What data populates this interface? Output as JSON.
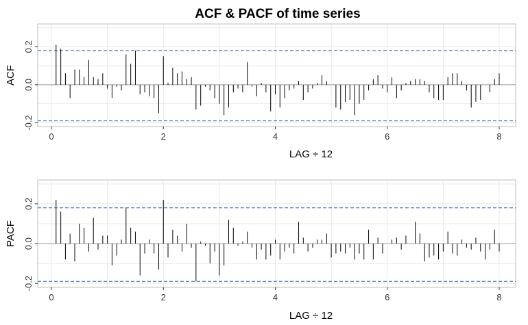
{
  "figure": {
    "title": "ACF & PACF of time series"
  },
  "chart_data": [
    {
      "type": "bar",
      "id": "acf",
      "ylabel": "ACF",
      "xlabel": "LAG ÷ 12",
      "xlim": [
        0,
        8
      ],
      "ylim": [
        -0.22,
        0.32
      ],
      "x_ticks": [
        0,
        2,
        4,
        6,
        8
      ],
      "y_ticks": [
        -0.2,
        0.0,
        0.2
      ],
      "y_tick_labels": [
        "-0.2",
        "0.0",
        "0.2"
      ],
      "x_tick_labels": [
        "0",
        "2",
        "4",
        "6",
        "8"
      ],
      "confidence_bounds": [
        0.18,
        -0.19
      ],
      "grid": true,
      "colors": {
        "bars": "#000000",
        "bounds": "#1f5fb4",
        "zero_line": "#9e9e9e",
        "grid": "#e8e8e8",
        "frame": "#bdbdbd"
      },
      "x": [
        0.083,
        0.167,
        0.25,
        0.333,
        0.417,
        0.5,
        0.583,
        0.667,
        0.75,
        0.833,
        0.917,
        1.0,
        1.083,
        1.167,
        1.25,
        1.333,
        1.417,
        1.5,
        1.583,
        1.667,
        1.75,
        1.833,
        1.917,
        2.0,
        2.083,
        2.167,
        2.25,
        2.333,
        2.417,
        2.5,
        2.583,
        2.667,
        2.75,
        2.833,
        2.917,
        3.0,
        3.083,
        3.167,
        3.25,
        3.333,
        3.417,
        3.5,
        3.583,
        3.667,
        3.75,
        3.833,
        3.917,
        4.0,
        4.083,
        4.167,
        4.25,
        4.333,
        4.417,
        4.5,
        4.583,
        4.667,
        4.75,
        4.833,
        4.917,
        5.0,
        5.083,
        5.167,
        5.25,
        5.333,
        5.417,
        5.5,
        5.583,
        5.667,
        5.75,
        5.833,
        5.917,
        6.0,
        6.083,
        6.167,
        6.25,
        6.333,
        6.417,
        6.5,
        6.583,
        6.667,
        6.75,
        6.833,
        6.917,
        7.0,
        7.083,
        7.167,
        7.25,
        7.333,
        7.417,
        7.5,
        7.583,
        7.667,
        7.75,
        7.833,
        7.917,
        8.0
      ],
      "values": [
        0.21,
        0.19,
        0.06,
        -0.07,
        0.08,
        0.08,
        0.04,
        0.13,
        0.04,
        0.03,
        0.06,
        -0.02,
        -0.07,
        -0.01,
        -0.03,
        0.16,
        0.11,
        0.18,
        -0.05,
        -0.04,
        -0.06,
        -0.07,
        -0.15,
        0.15,
        0.01,
        0.09,
        0.06,
        0.07,
        0.03,
        0.04,
        -0.13,
        -0.11,
        -0.01,
        -0.03,
        -0.07,
        -0.1,
        -0.16,
        -0.12,
        -0.04,
        -0.02,
        -0.04,
        0.12,
        -0.01,
        -0.06,
        0.01,
        -0.04,
        -0.14,
        -0.05,
        -0.12,
        -0.07,
        -0.03,
        -0.02,
        0.02,
        -0.08,
        -0.04,
        -0.02,
        0.01,
        0.05,
        0.02,
        0.0,
        -0.12,
        -0.13,
        -0.09,
        -0.08,
        -0.16,
        -0.1,
        -0.08,
        -0.03,
        0.03,
        0.05,
        -0.02,
        -0.04,
        0.04,
        -0.07,
        -0.03,
        0.01,
        0.02,
        0.03,
        0.03,
        0.02,
        -0.04,
        -0.07,
        -0.08,
        -0.08,
        0.04,
        0.06,
        0.06,
        0.02,
        -0.03,
        -0.12,
        -0.09,
        -0.08,
        0.0,
        -0.04,
        0.03,
        0.06
      ]
    },
    {
      "type": "bar",
      "id": "pacf",
      "ylabel": "PACF",
      "xlabel": "LAG ÷ 12",
      "xlim": [
        0,
        8
      ],
      "ylim": [
        -0.22,
        0.32
      ],
      "x_ticks": [
        0,
        2,
        4,
        6,
        8
      ],
      "y_ticks": [
        -0.2,
        0.0,
        0.2
      ],
      "y_tick_labels": [
        "-0.2",
        "0.0",
        "0.2"
      ],
      "x_tick_labels": [
        "0",
        "2",
        "4",
        "6",
        "8"
      ],
      "confidence_bounds": [
        0.18,
        -0.19
      ],
      "grid": true,
      "colors": {
        "bars": "#000000",
        "bounds": "#1f5fb4",
        "zero_line": "#9e9e9e",
        "grid": "#e8e8e8",
        "frame": "#bdbdbd"
      },
      "x": [
        0.083,
        0.167,
        0.25,
        0.333,
        0.417,
        0.5,
        0.583,
        0.667,
        0.75,
        0.833,
        0.917,
        1.0,
        1.083,
        1.167,
        1.25,
        1.333,
        1.417,
        1.5,
        1.583,
        1.667,
        1.75,
        1.833,
        1.917,
        2.0,
        2.083,
        2.167,
        2.25,
        2.333,
        2.417,
        2.5,
        2.583,
        2.667,
        2.75,
        2.833,
        2.917,
        3.0,
        3.083,
        3.167,
        3.25,
        3.333,
        3.417,
        3.5,
        3.583,
        3.667,
        3.75,
        3.833,
        3.917,
        4.0,
        4.083,
        4.167,
        4.25,
        4.333,
        4.417,
        4.5,
        4.583,
        4.667,
        4.75,
        4.833,
        4.917,
        5.0,
        5.083,
        5.167,
        5.25,
        5.333,
        5.417,
        5.5,
        5.583,
        5.667,
        5.75,
        5.833,
        5.917,
        6.0,
        6.083,
        6.167,
        6.25,
        6.333,
        6.417,
        6.5,
        6.583,
        6.667,
        6.75,
        6.833,
        6.917,
        7.0,
        7.083,
        7.167,
        7.25,
        7.333,
        7.417,
        7.5,
        7.583,
        7.667,
        7.75,
        7.833,
        7.917,
        8.0
      ],
      "values": [
        0.22,
        0.16,
        -0.08,
        0.05,
        -0.09,
        0.1,
        0.08,
        -0.04,
        0.13,
        -0.03,
        0.04,
        0.04,
        -0.11,
        -0.06,
        0.02,
        0.18,
        0.08,
        0.06,
        -0.16,
        -0.05,
        0.02,
        -0.05,
        -0.13,
        0.22,
        -0.07,
        0.07,
        0.04,
        -0.04,
        0.1,
        -0.02,
        -0.19,
        0.01,
        -0.01,
        -0.1,
        -0.04,
        -0.16,
        -0.11,
        0.12,
        0.08,
        -0.01,
        0.01,
        0.06,
        -0.02,
        -0.08,
        -0.03,
        -0.08,
        -0.06,
        0.02,
        -0.08,
        -0.04,
        -0.02,
        -0.05,
        0.11,
        0.03,
        -0.04,
        -0.02,
        0.02,
        0.02,
        0.05,
        -0.07,
        -0.05,
        -0.04,
        -0.05,
        -0.02,
        -0.08,
        -0.05,
        -0.08,
        0.07,
        -0.08,
        0.03,
        -0.05,
        0.0,
        0.02,
        0.03,
        -0.03,
        0.04,
        0.0,
        0.11,
        0.05,
        -0.09,
        -0.07,
        -0.06,
        -0.08,
        -0.04,
        0.06,
        -0.05,
        -0.06,
        0.02,
        -0.02,
        -0.03,
        0.03,
        -0.04,
        -0.08,
        -0.03,
        0.07,
        -0.04
      ]
    }
  ]
}
